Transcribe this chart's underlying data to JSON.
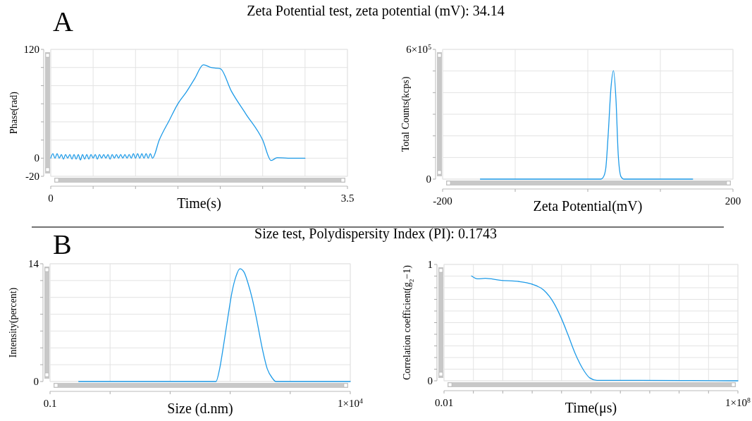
{
  "chart_data": [
    {
      "type": "line",
      "title": "Zeta Potential test, zeta potential (mV): 34.14",
      "annotations": [
        "A"
      ],
      "xlabel": "Time(s)",
      "ylabel": "Phase(rad)",
      "grid": true,
      "xlim": [
        0,
        3.5
      ],
      "ylim": [
        -20,
        120
      ],
      "xticks": [
        0,
        {
          "value": 0.5,
          "label": null
        },
        {
          "value": 1,
          "label": null
        },
        {
          "value": 1.5,
          "label": null
        },
        {
          "value": 2,
          "label": null
        },
        {
          "value": 2.5,
          "label": null
        },
        {
          "value": 3,
          "label": null
        },
        3.5
      ],
      "yticks": [
        -20,
        0,
        {
          "value": 20,
          "label": null
        },
        {
          "value": 40,
          "label": null
        },
        {
          "value": 60,
          "label": null
        },
        {
          "value": 80,
          "label": null
        },
        {
          "value": 100,
          "label": null
        },
        120
      ],
      "series": [
        {
          "color": "#1e9be8",
          "x": [
            0,
            0.025,
            0.05,
            0.075,
            0.1,
            0.125,
            0.15,
            0.175,
            0.2,
            0.225,
            0.25,
            0.275,
            0.3,
            0.325,
            0.35,
            0.375,
            0.4,
            0.425,
            0.45,
            0.475,
            0.5,
            0.525,
            0.55,
            0.575,
            0.6,
            0.625,
            0.65,
            0.675,
            0.7,
            0.725,
            0.75,
            0.775,
            0.8,
            0.825,
            0.85,
            0.875,
            0.9,
            0.925,
            0.95,
            0.975,
            1,
            1.025,
            1.05,
            1.075,
            1.1,
            1.125,
            1.15,
            1.175,
            1.2,
            1.28,
            1.4,
            1.5,
            1.6,
            1.7,
            1.8,
            1.89,
            2.0,
            2.13,
            2.3,
            2.5,
            2.6,
            2.67,
            2.8,
            3.0
          ],
          "values": [
            0,
            5,
            0,
            5,
            0,
            4,
            -1,
            4,
            0,
            4,
            -1,
            4,
            -1,
            4,
            -2,
            4,
            -1,
            4,
            -1,
            4,
            0,
            4,
            -1,
            4,
            0,
            4,
            0,
            4,
            -1,
            4,
            0,
            4,
            0,
            4,
            0,
            4,
            0,
            4,
            0,
            5,
            0,
            5,
            0,
            5,
            0,
            5,
            0,
            5,
            0,
            20,
            42,
            60,
            73,
            88,
            103,
            100,
            98.7,
            74,
            49,
            20,
            -2.6,
            0.5,
            0,
            0
          ]
        }
      ]
    },
    {
      "type": "line",
      "xlabel": "Zeta Potential(mV)",
      "ylabel": "Total Counts(kcps)",
      "grid": true,
      "xlim": [
        -200,
        200
      ],
      "ylim": [
        0,
        600000
      ],
      "xticks": [
        -200,
        {
          "value": -100,
          "label": null
        },
        {
          "value": 0,
          "label": null
        },
        {
          "value": 100,
          "label": null
        },
        200
      ],
      "yticks": [
        0,
        {
          "value": 100000,
          "label": null
        },
        {
          "value": 200000,
          "label": null
        },
        {
          "value": 300000,
          "label": null
        },
        {
          "value": 400000,
          "label": null
        },
        {
          "value": 500000,
          "label": null
        },
        {
          "value": 600000,
          "label": "6×10$^{5}$"
        }
      ],
      "series": [
        {
          "color": "#1e9be8",
          "x": [
            -148,
            18,
            21.4,
            24.7,
            28,
            32,
            35.4,
            38.8,
            42,
            45.8,
            49.8,
            144.5
          ],
          "values": [
            0,
            0,
            9000,
            48000,
            200000,
            425000,
            502000,
            370000,
            110000,
            11000,
            0,
            0
          ]
        }
      ]
    },
    {
      "type": "line",
      "title": "Size test, Polydispersity Index (PI): 0.1743",
      "annotations": [
        "B"
      ],
      "xlabel": "Size (d.nm)",
      "ylabel": "Intensity(percent)",
      "grid": true,
      "log": "x",
      "xlim": [
        0.1,
        10000
      ],
      "ylim": [
        0,
        14
      ],
      "xticks": [
        0.1,
        {
          "value": 1,
          "label": null
        },
        {
          "value": 10,
          "label": null
        },
        {
          "value": 100,
          "label": null
        },
        {
          "value": 1000,
          "label": null
        },
        {
          "value": 10000,
          "label": "1×10$^{4}$"
        }
      ],
      "yticks": [
        0,
        {
          "value": 2,
          "label": null
        },
        {
          "value": 4,
          "label": null
        },
        {
          "value": 6,
          "label": null
        },
        {
          "value": 8,
          "label": null
        },
        {
          "value": 10,
          "label": null
        },
        {
          "value": 12,
          "label": null
        },
        14
      ],
      "series": [
        {
          "color": "#1e9be8",
          "x": [
            0.3,
            53,
            58,
            66.7,
            76.4,
            91.4,
            107,
            125,
            145,
            170,
            198,
            234,
            281,
            334,
            415,
            504,
            575,
            10000
          ],
          "values": [
            0,
            0,
            0,
            1.5,
            4,
            7.6,
            10.6,
            12.5,
            13.4,
            13,
            11.7,
            9.8,
            7.1,
            4.3,
            1.5,
            0.4,
            0,
            0
          ]
        }
      ]
    },
    {
      "type": "line",
      "xlabel": "Time(μs)",
      "ylabel": "Correlation coefficient(g$_{2}$−1)",
      "grid": true,
      "log": "x",
      "xlim": [
        0.01,
        100000000
      ],
      "ylim": [
        0,
        1
      ],
      "xticks": [
        0.01,
        {
          "value": 0.1,
          "label": null
        },
        {
          "value": 1,
          "label": null
        },
        {
          "value": 10,
          "label": null
        },
        {
          "value": 100,
          "label": null
        },
        {
          "value": 1000,
          "label": null
        },
        {
          "value": 10000,
          "label": null
        },
        {
          "value": 100000,
          "label": null
        },
        {
          "value": 1000000,
          "label": null
        },
        {
          "value": 10000000,
          "label": null
        },
        {
          "value": 100000000,
          "label": "1×10$^{8}$"
        }
      ],
      "yticks": [
        0,
        {
          "value": 0.1,
          "label": null
        },
        {
          "value": 0.2,
          "label": null
        },
        {
          "value": 0.3,
          "label": null
        },
        {
          "value": 0.4,
          "label": null
        },
        {
          "value": 0.5,
          "label": null
        },
        {
          "value": 0.6,
          "label": null
        },
        {
          "value": 0.7,
          "label": null
        },
        {
          "value": 0.8,
          "label": null
        },
        {
          "value": 0.9,
          "label": null
        },
        1
      ],
      "series": [
        {
          "color": "#1e9be8",
          "x": [
            0.086,
            0.138,
            0.254,
            0.8,
            3.65,
            9.4,
            24.5,
            52.7,
            102,
            163,
            290,
            510,
            910,
            1600,
            7400,
            1260000,
            100000000
          ],
          "values": [
            0.901,
            0.876,
            0.881,
            0.864,
            0.853,
            0.832,
            0.78,
            0.675,
            0.528,
            0.4,
            0.235,
            0.109,
            0.025,
            0.004,
            0.004,
            0.002,
            0
          ]
        }
      ]
    }
  ]
}
